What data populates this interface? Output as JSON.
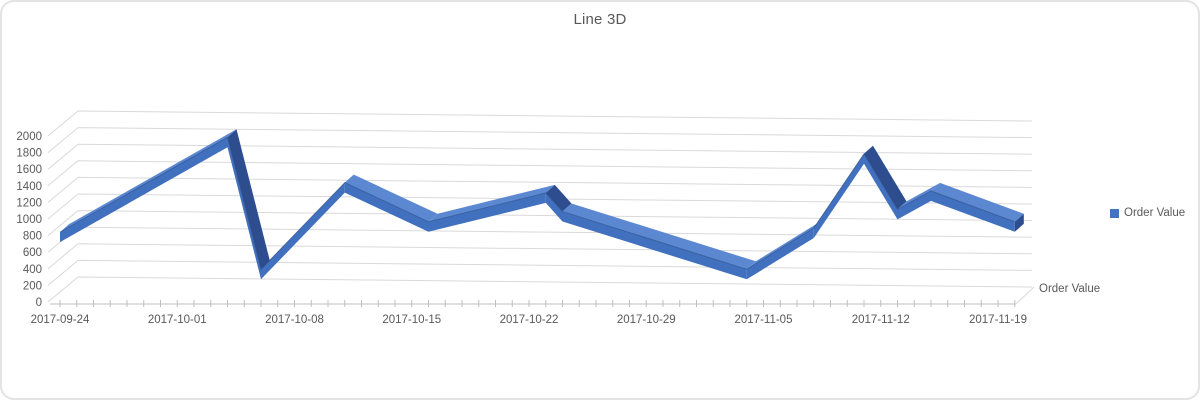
{
  "title": "Line 3D",
  "legend": {
    "position": "right",
    "items": [
      {
        "label": "Order Value"
      }
    ]
  },
  "depth_axis": {
    "label": "Order Value"
  },
  "colors": {
    "series_front": "#4170BE",
    "series_top": "#5C88D2",
    "series_side_dark": "#2D4D8E",
    "series_edge_line": "#27477F",
    "legend_marker": "#4472C4",
    "gridline": "#D9D9D9",
    "axis_line": "#BFBFBF",
    "text": "#595959"
  },
  "chart_data": {
    "type": "line",
    "variant": "3d-ribbon",
    "title": "Line 3D",
    "gridlines": true,
    "legend_position": "right",
    "depth_axis_label": "Order Value",
    "series": [
      {
        "name": "Order Value",
        "points": [
          {
            "date": "2017-09-24",
            "value": 750
          },
          {
            "date": "2017-10-04",
            "value": 1900
          },
          {
            "date": "2017-10-06",
            "value": 300
          },
          {
            "date": "2017-10-11",
            "value": 1350
          },
          {
            "date": "2017-10-16",
            "value": 875
          },
          {
            "date": "2017-10-23",
            "value": 1225
          },
          {
            "date": "2017-10-24",
            "value": 1000
          },
          {
            "date": "2017-11-04",
            "value": 300
          },
          {
            "date": "2017-11-08",
            "value": 800
          },
          {
            "date": "2017-11-11",
            "value": 1700
          },
          {
            "date": "2017-11-13",
            "value": 1025
          },
          {
            "date": "2017-11-15",
            "value": 1250
          },
          {
            "date": "2017-11-20",
            "value": 875
          }
        ]
      }
    ],
    "x_axis": {
      "start": "2017-09-24",
      "end": "2017-11-20",
      "tick_interval_days": 1,
      "label_interval_days": 7,
      "tick_labels": [
        "2017-09-24",
        "2017-10-01",
        "2017-10-08",
        "2017-10-15",
        "2017-10-22",
        "2017-10-29",
        "2017-11-05",
        "2017-11-12",
        "2017-11-19"
      ]
    },
    "y_axis": {
      "min": 0,
      "max": 2000,
      "step": 200,
      "tick_labels": [
        "0",
        "200",
        "400",
        "600",
        "800",
        "1000",
        "1200",
        "1400",
        "1600",
        "1800",
        "2000"
      ]
    }
  }
}
